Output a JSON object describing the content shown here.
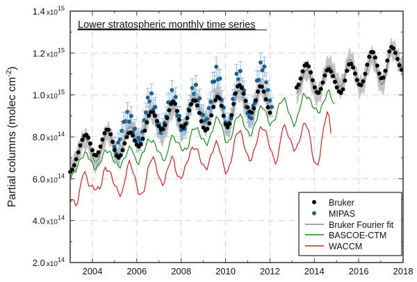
{
  "chart_data": {
    "type": "line",
    "title": "Lower stratospheric monthly time series",
    "xlabel": "",
    "ylabel": "Partial columns (molec cm⁻²)",
    "ylabel_parts": {
      "main": "Partial columns (molec cm",
      "sup": "-2",
      "close": ")"
    },
    "xlim": [
      2003,
      2018
    ],
    "ylim": [
      200000000000000.0,
      1400000000000000.0
    ],
    "value_unit": "1e14 molec cm-2",
    "x_ticks": [
      "2004",
      "2006",
      "2008",
      "2010",
      "2012",
      "2014",
      "2016",
      "2018"
    ],
    "y_ticks": [
      {
        "mant": "2.0",
        "exp": "14",
        "value": 2
      },
      {
        "mant": "4.0",
        "exp": "14",
        "value": 4
      },
      {
        "mant": "6.0",
        "exp": "14",
        "value": 6
      },
      {
        "mant": "8.0",
        "exp": "14",
        "value": 8
      },
      {
        "mant": "1.0",
        "exp": "15",
        "value": 10
      },
      {
        "mant": "1.2",
        "exp": "15",
        "value": 12
      },
      {
        "mant": "1.4",
        "exp": "15",
        "value": 14
      }
    ],
    "grid": true,
    "legend_position": "bottom-right",
    "series": [
      {
        "name": "Bruker",
        "kind": "points",
        "color": "#000000",
        "segments": [
          [
            [
              2003.0,
              6.5
            ],
            [
              2003.7,
              7.9
            ],
            [
              2004.15,
              6.8
            ],
            [
              2004.7,
              8.2
            ],
            [
              2005.15,
              7.1
            ],
            [
              2005.7,
              8.5
            ],
            [
              2006.1,
              7.8
            ],
            [
              2006.65,
              9.2
            ],
            [
              2007.15,
              8.1
            ],
            [
              2007.65,
              9.4
            ],
            [
              2008.05,
              8.3
            ],
            [
              2008.6,
              9.9
            ],
            [
              2009.1,
              8.6
            ],
            [
              2009.65,
              10.1
            ],
            [
              2010.1,
              8.4
            ],
            [
              2010.6,
              10.2
            ],
            [
              2011.15,
              8.9
            ],
            [
              2011.6,
              10.4
            ],
            [
              2012.05,
              9.3
            ]
          ],
          [
            [
              2013.2,
              10.1
            ],
            [
              2013.65,
              11.2
            ],
            [
              2014.15,
              10.0
            ],
            [
              2014.65,
              11.4
            ],
            [
              2015.2,
              10.4
            ],
            [
              2015.6,
              11.7
            ],
            [
              2016.1,
              10.4
            ],
            [
              2016.6,
              11.8
            ],
            [
              2017.05,
              10.5
            ],
            [
              2017.5,
              12.2
            ],
            [
              2018.0,
              11.3
            ]
          ]
        ]
      },
      {
        "name": "MIPAS",
        "kind": "points",
        "color": "#1f5f8b",
        "error_color": "#8fb8da",
        "error": 0.45,
        "segments": [
          [
            [
              2005.0,
              7.3
            ],
            [
              2005.6,
              9.0
            ],
            [
              2006.1,
              7.8
            ],
            [
              2006.6,
              9.9
            ],
            [
              2007.1,
              8.3
            ],
            [
              2007.6,
              10.0
            ],
            [
              2008.1,
              8.3
            ],
            [
              2008.6,
              10.3
            ],
            [
              2009.1,
              8.8
            ],
            [
              2009.6,
              11.1
            ],
            [
              2010.1,
              8.5
            ],
            [
              2010.6,
              11.0
            ],
            [
              2011.1,
              8.9
            ],
            [
              2011.65,
              11.4
            ],
            [
              2012.1,
              9.5
            ]
          ]
        ]
      },
      {
        "name": "Bruker Fourier fit",
        "kind": "line",
        "color": "#666666",
        "band_color": "#c4c4c4",
        "band_halfwidth": 0.45,
        "follows": "Bruker"
      },
      {
        "name": "BASCOE-CTM",
        "kind": "line",
        "color": "#1a8a1a",
        "segments": [
          [
            [
              2003.0,
              6.1
            ],
            [
              2003.7,
              7.2
            ],
            [
              2004.15,
              6.5
            ],
            [
              2004.65,
              7.35
            ],
            [
              2005.2,
              6.6
            ],
            [
              2005.75,
              7.5
            ],
            [
              2006.0,
              6.75
            ],
            [
              2006.6,
              7.85
            ],
            [
              2007.3,
              6.9
            ],
            [
              2007.55,
              8.0
            ],
            [
              2008.2,
              7.35
            ],
            [
              2008.6,
              8.45
            ],
            [
              2009.15,
              7.7
            ],
            [
              2009.65,
              8.9
            ],
            [
              2010.1,
              7.7
            ],
            [
              2010.6,
              9.05
            ],
            [
              2011.1,
              8.1
            ],
            [
              2011.65,
              9.45
            ],
            [
              2012.05,
              8.6
            ],
            [
              2012.6,
              9.8
            ],
            [
              2013.1,
              8.6
            ],
            [
              2013.55,
              10.0
            ],
            [
              2014.2,
              9.2
            ],
            [
              2014.65,
              10.15
            ],
            [
              2014.95,
              9.45
            ]
          ]
        ]
      },
      {
        "name": "WACCM",
        "kind": "line",
        "color": "#cc1f1f",
        "segments": [
          [
            [
              2003.0,
              5.0
            ],
            [
              2003.3,
              4.8
            ],
            [
              2003.6,
              6.3
            ],
            [
              2003.95,
              5.6
            ],
            [
              2004.3,
              5.5
            ],
            [
              2004.6,
              6.5
            ],
            [
              2005.3,
              5.25
            ],
            [
              2005.65,
              6.75
            ],
            [
              2006.2,
              5.2
            ],
            [
              2006.7,
              7.0
            ],
            [
              2007.15,
              5.75
            ],
            [
              2007.6,
              7.0
            ],
            [
              2007.9,
              6.0
            ],
            [
              2008.6,
              7.5
            ],
            [
              2009.1,
              6.5
            ],
            [
              2009.6,
              7.7
            ],
            [
              2010.05,
              6.3
            ],
            [
              2010.6,
              8.3
            ],
            [
              2011.1,
              6.9
            ],
            [
              2011.65,
              8.45
            ],
            [
              2012.3,
              6.8
            ],
            [
              2012.6,
              8.5
            ],
            [
              2013.15,
              7.4
            ],
            [
              2013.6,
              8.65
            ],
            [
              2014.1,
              6.6
            ],
            [
              2014.6,
              9.15
            ],
            [
              2014.8,
              8.1
            ]
          ]
        ]
      }
    ]
  }
}
